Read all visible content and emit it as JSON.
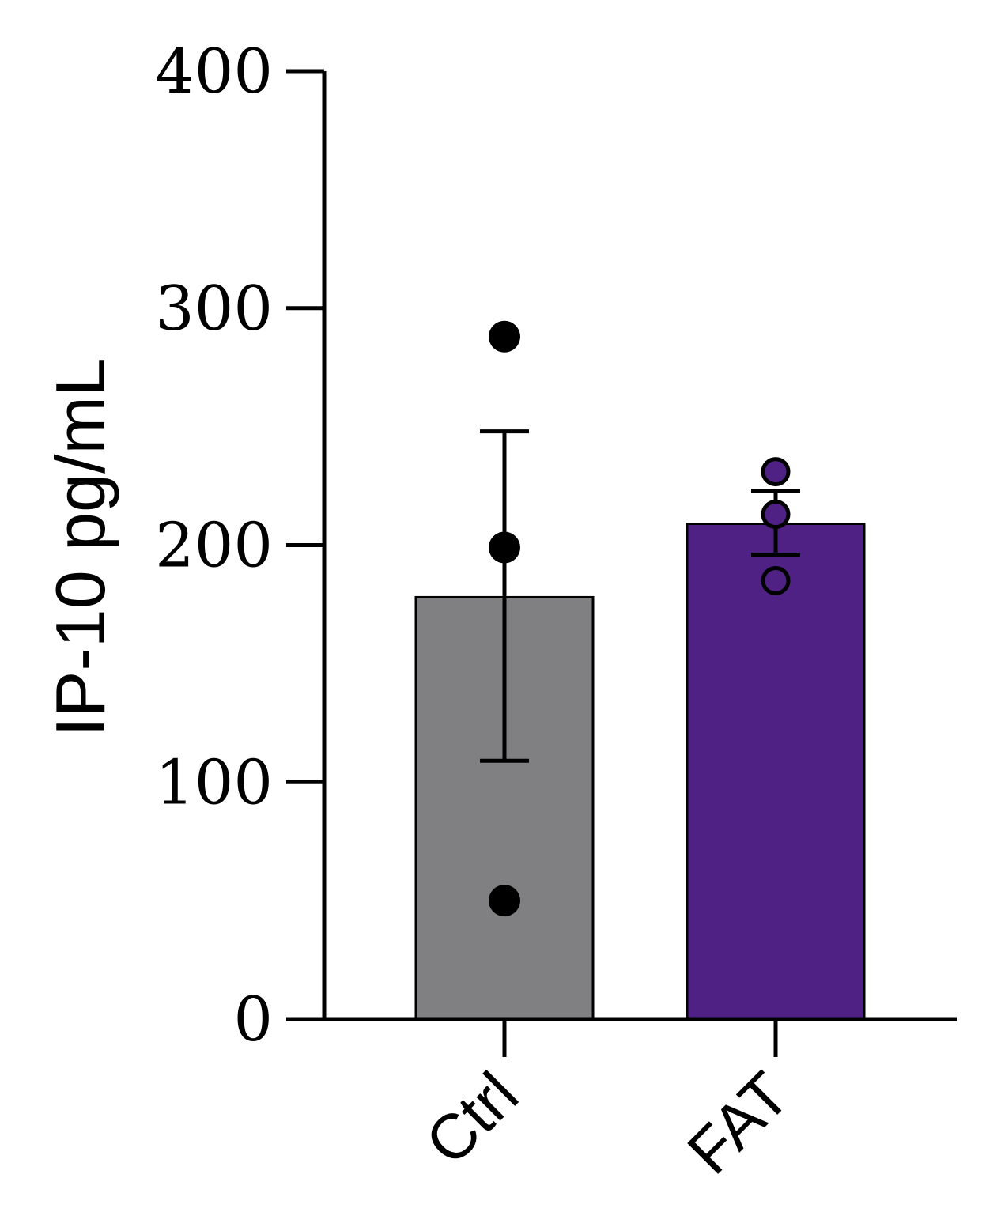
{
  "chart_data": {
    "type": "bar",
    "title": "",
    "xlabel": "",
    "ylabel": "IP-10 pg/mL",
    "ylim": [
      0,
      400
    ],
    "yticks": [
      0,
      100,
      200,
      300,
      400
    ],
    "categories": [
      "Ctrl",
      "FAT"
    ],
    "values": [
      178,
      209
    ],
    "error": [
      {
        "low": 109,
        "high": 248
      },
      {
        "low": 196,
        "high": 223
      }
    ],
    "points": [
      [
        288,
        199,
        50
      ],
      [
        231,
        213,
        185
      ]
    ],
    "point_style": [
      "filled",
      "open"
    ],
    "colors": {
      "bars": [
        "#808083",
        "#4f2184"
      ],
      "points": [
        "#000000",
        "#4f2184"
      ],
      "axis": "#000000"
    },
    "grid": false,
    "legend": "none"
  }
}
